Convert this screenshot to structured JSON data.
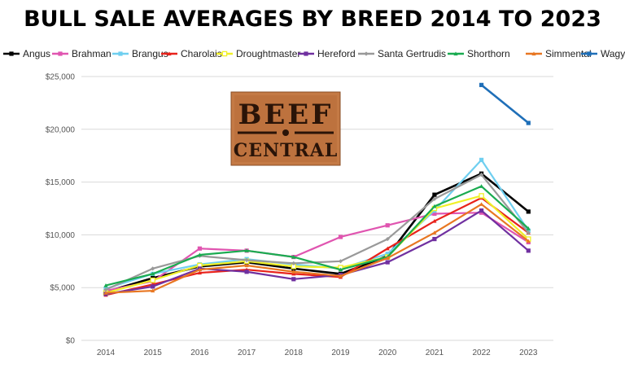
{
  "chart_data": {
    "type": "line",
    "title": "BULL SALE AVERAGES BY BREED 2014 TO 2023",
    "xlabel": "",
    "ylabel": "",
    "ylim": [
      0,
      25000
    ],
    "yticks": [
      "$0",
      "$5,000",
      "$10,000",
      "$15,000",
      "$20,000",
      "$25,000"
    ],
    "x": [
      "2014",
      "2015",
      "2016",
      "2017",
      "2018",
      "2019",
      "2020",
      "2021",
      "2022",
      "2023"
    ],
    "legend_position": "top",
    "grid": true,
    "series": [
      {
        "name": "Angus",
        "color": "#000000",
        "marker": "square",
        "values": [
          4600,
          5900,
          7000,
          7400,
          6800,
          6300,
          8000,
          13800,
          15800,
          12200
        ]
      },
      {
        "name": "Brahman",
        "color": "#e055b0",
        "marker": "square",
        "values": [
          4700,
          5600,
          8700,
          8500,
          7900,
          9800,
          10900,
          12000,
          12100,
          9300
        ]
      },
      {
        "name": "Brangus",
        "color": "#6fcff0",
        "marker": "square",
        "values": [
          4900,
          6300,
          7200,
          7700,
          7200,
          6800,
          8200,
          12300,
          17100,
          10400
        ]
      },
      {
        "name": "Charolais",
        "color": "#e8231c",
        "marker": "triangle",
        "values": [
          4300,
          5300,
          6400,
          6700,
          6300,
          6000,
          8700,
          11300,
          13500,
          10200
        ]
      },
      {
        "name": "Droughtmaster",
        "color": "#f0f028",
        "marker": "square-open",
        "values": [
          4500,
          5700,
          7100,
          7500,
          7000,
          6900,
          7900,
          12500,
          13700,
          9600
        ]
      },
      {
        "name": "Hereford",
        "color": "#7030a0",
        "marker": "square",
        "values": [
          4400,
          5100,
          6800,
          6500,
          5800,
          6200,
          7400,
          9600,
          12300,
          8500
        ]
      },
      {
        "name": "Santa Gertrudis",
        "color": "#999999",
        "marker": "diamond",
        "values": [
          4800,
          6800,
          8000,
          7600,
          7300,
          7500,
          9600,
          13400,
          15700,
          10200
        ]
      },
      {
        "name": "Shorthorn",
        "color": "#1aab50",
        "marker": "triangle",
        "values": [
          5200,
          6300,
          8100,
          8500,
          7900,
          6700,
          7900,
          12700,
          14600,
          10600
        ]
      },
      {
        "name": "Simmental",
        "color": "#e87722",
        "marker": "triangle",
        "values": [
          4500,
          4700,
          6700,
          7100,
          6500,
          6100,
          7800,
          10200,
          12900,
          9400
        ]
      },
      {
        "name": "Wagyu",
        "color": "#1f6fb8",
        "marker": "square",
        "values": [
          null,
          null,
          null,
          null,
          null,
          null,
          null,
          null,
          24200,
          20600
        ]
      }
    ]
  },
  "logo": {
    "line1": "BEEF",
    "line2": "CENTRAL"
  }
}
